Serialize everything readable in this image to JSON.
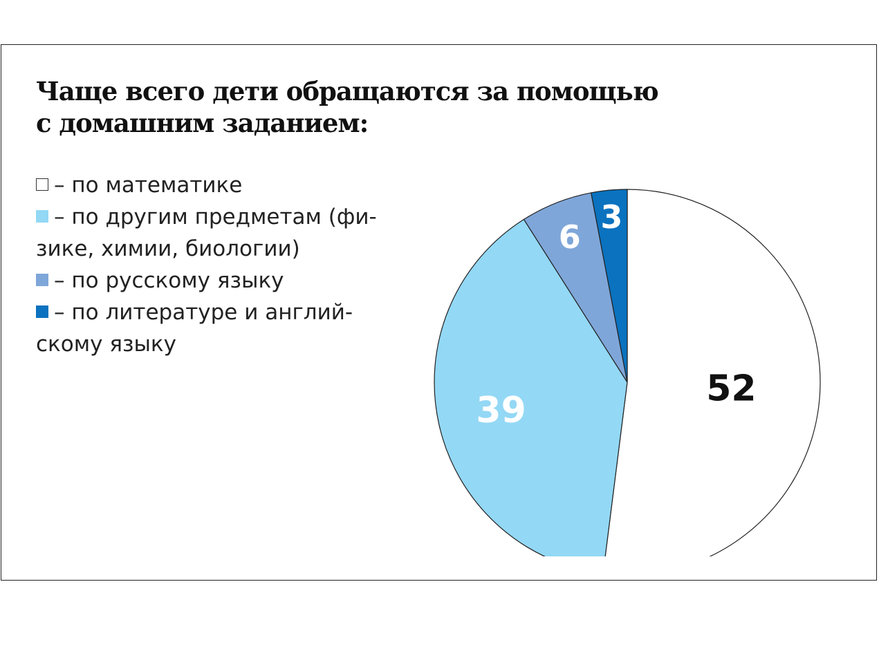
{
  "chart_data": {
    "type": "pie",
    "title_lines": [
      "Чаще всего дети обращаются за помощью",
      "с домашним заданием:"
    ],
    "slices": [
      {
        "label_lines": [
          "– по математике"
        ],
        "value": 52,
        "value_label": "52",
        "color": "#ffffff",
        "text_color": "#111111"
      },
      {
        "label_lines": [
          "– по другим предметам (фи-",
          "зике, химии, биологии)"
        ],
        "value": 39,
        "value_label": "39",
        "color": "#93d8f5",
        "text_color": "#ffffff"
      },
      {
        "label_lines": [
          "– по русскому языку"
        ],
        "value": 6,
        "value_label": "6",
        "color": "#7fa6d9",
        "text_color": "#ffffff"
      },
      {
        "label_lines": [
          "– по литературе и англий-",
          "скому языку"
        ],
        "value": 3,
        "value_label": "3",
        "color": "#0a72bf",
        "text_color": "#ffffff"
      }
    ],
    "start": "top",
    "direction": "clockwise",
    "legend_position": "left"
  }
}
